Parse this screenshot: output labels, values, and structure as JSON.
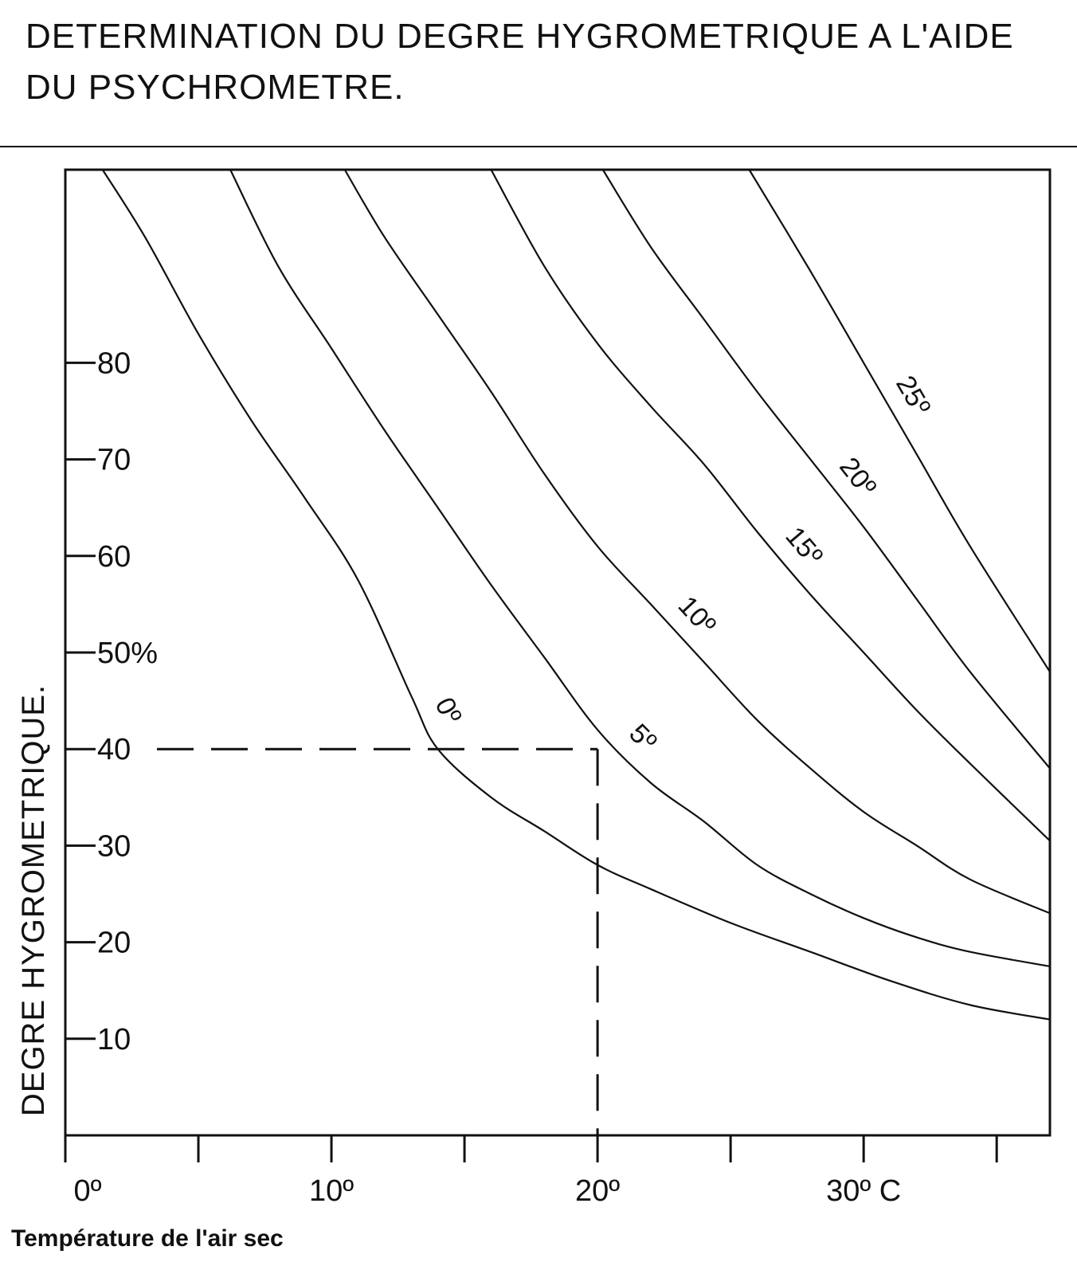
{
  "title": "DETERMINATION DU DEGRE HYGROMETRIQUE A L'AIDE DU PSYCHROMETRE.",
  "chart_data": {
    "type": "line",
    "title": "DETERMINATION DU DEGRE HYGROMETRIQUE A L'AIDE DU PSYCHROMETRE.",
    "xlabel": "Température de l'air sec",
    "ylabel": "DEGRE HYGROMETRIQUE.",
    "xlim": [
      0,
      37
    ],
    "ylim": [
      0,
      100
    ],
    "grid": false,
    "x_ticks": [
      0,
      5,
      10,
      15,
      20,
      25,
      30,
      35
    ],
    "x_tick_labels": [
      {
        "x": 0,
        "text": "0º"
      },
      {
        "x": 10,
        "text": "10º"
      },
      {
        "x": 20,
        "text": "20º"
      },
      {
        "x": 30,
        "text": "30º C"
      }
    ],
    "y_ticks": [
      {
        "y": 10,
        "text": "10"
      },
      {
        "y": 20,
        "text": "20"
      },
      {
        "y": 30,
        "text": "30"
      },
      {
        "y": 40,
        "text": "40"
      },
      {
        "y": 50,
        "text": "50%"
      },
      {
        "y": 60,
        "text": "60"
      },
      {
        "y": 70,
        "text": "70"
      },
      {
        "y": 80,
        "text": "80"
      }
    ],
    "series": [
      {
        "name": "0º",
        "x": [
          1.4,
          3,
          5,
          7,
          9,
          11,
          13,
          14,
          16,
          18,
          20,
          22,
          25,
          28,
          31,
          34,
          37
        ],
        "y": [
          100,
          93,
          83,
          74,
          66,
          57.5,
          45.5,
          40,
          35,
          31.5,
          28,
          25.5,
          22,
          19,
          16,
          13.5,
          12
        ]
      },
      {
        "name": "5º",
        "x": [
          6.2,
          8,
          10,
          12,
          14,
          16,
          18,
          20,
          22,
          24,
          26,
          28,
          30,
          32,
          34,
          37
        ],
        "y": [
          100,
          90,
          81.5,
          73,
          65,
          57,
          49.5,
          42,
          36.5,
          32.5,
          28,
          25,
          22.5,
          20.5,
          19,
          17.5
        ]
      },
      {
        "name": "10º",
        "x": [
          10.5,
          12,
          14,
          16,
          18,
          20,
          22,
          24,
          26,
          28,
          30,
          32,
          34,
          37
        ],
        "y": [
          100,
          93,
          85,
          77,
          68.5,
          61,
          55,
          49,
          43,
          38,
          33.5,
          30,
          26.5,
          23
        ]
      },
      {
        "name": "15º",
        "x": [
          16,
          18,
          20,
          22,
          24,
          26,
          28,
          30,
          32,
          34,
          37
        ],
        "y": [
          100,
          90,
          82,
          75.5,
          69.5,
          62.5,
          56,
          50,
          44,
          38.5,
          30.5
        ]
      },
      {
        "name": "20º",
        "x": [
          20.2,
          22,
          24,
          26,
          28,
          30,
          32,
          34,
          37
        ],
        "y": [
          100,
          92,
          84.5,
          77,
          70,
          63,
          55.5,
          48,
          38
        ]
      },
      {
        "name": "25º",
        "x": [
          25.7,
          28,
          30,
          32,
          34,
          37
        ],
        "y": [
          100,
          89.5,
          80,
          70.5,
          61,
          48
        ]
      }
    ],
    "annotations": [
      {
        "type": "dashed-guide",
        "x": 20,
        "y": 40,
        "note": "horizontal and vertical dashed lines crossing at 20º / 40"
      }
    ]
  }
}
